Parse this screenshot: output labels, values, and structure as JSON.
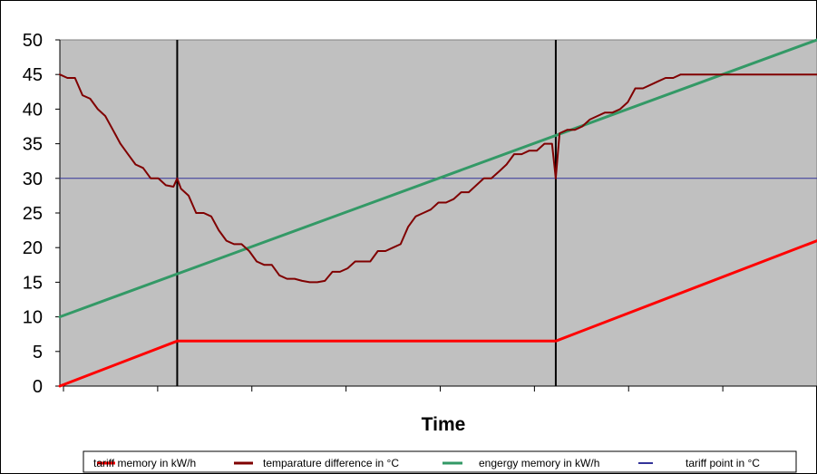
{
  "chart_data": {
    "type": "line",
    "title": "",
    "xlabel": "Time",
    "ylabel": "",
    "ylim": [
      0,
      50
    ],
    "yticks": [
      "0",
      "5",
      "10",
      "15",
      "20",
      "25",
      "30",
      "35",
      "40",
      "45",
      "50"
    ],
    "xlim": [
      0,
      100
    ],
    "grid": false,
    "legend_position": "bottom",
    "plot_background": "#c0c0c0",
    "vertical_markers": [
      15.5,
      65.5
    ],
    "series": [
      {
        "name": "tariff memory in kW/h",
        "color": "#ff0000",
        "x": [
          0,
          15.5,
          65.5,
          100
        ],
        "y": [
          0,
          6.5,
          6.5,
          21
        ]
      },
      {
        "name": "temparature difference in °C",
        "color": "#800000",
        "x": [
          0,
          1,
          2,
          3,
          4,
          5,
          6,
          7,
          8,
          9,
          10,
          11,
          12,
          13,
          14,
          15,
          15.5,
          16,
          17,
          18,
          19,
          20,
          21,
          22,
          23,
          24,
          25,
          26,
          27,
          28,
          29,
          30,
          31,
          32,
          33,
          34,
          35,
          36,
          37,
          38,
          39,
          40,
          41,
          42,
          43,
          44,
          45,
          46,
          47,
          48,
          49,
          50,
          51,
          52,
          53,
          54,
          55,
          56,
          57,
          58,
          59,
          60,
          61,
          62,
          63,
          64,
          65,
          65.5,
          66,
          67,
          68,
          69,
          70,
          71,
          72,
          73,
          74,
          75,
          76,
          77,
          78,
          79,
          80,
          81,
          82,
          83,
          84,
          85,
          86,
          87,
          88,
          89,
          90,
          91,
          92,
          93,
          94,
          95,
          96,
          97,
          98,
          99,
          100
        ],
        "y": [
          45,
          44.5,
          44.5,
          42,
          41.5,
          40,
          39,
          37,
          35,
          33.5,
          32,
          31.5,
          30,
          30,
          29,
          28.8,
          30,
          28.5,
          27.5,
          25,
          25,
          24.5,
          22.5,
          21,
          20.5,
          20.5,
          19.5,
          18,
          17.5,
          17.5,
          16,
          15.5,
          15.5,
          15.2,
          15,
          15,
          15.2,
          16.5,
          16.5,
          17,
          18,
          18,
          18,
          19.5,
          19.5,
          20,
          20.5,
          23,
          24.5,
          25,
          25.5,
          26.5,
          26.5,
          27,
          28,
          28,
          29,
          30,
          30,
          31,
          32,
          33.5,
          33.5,
          34,
          34,
          35,
          35,
          30,
          36.5,
          37,
          37,
          37.5,
          38.5,
          39,
          39.5,
          39.5,
          40,
          41,
          43,
          43,
          43.5,
          44,
          44.5,
          44.5,
          45,
          45,
          45,
          45,
          45,
          45,
          45,
          45,
          45,
          45,
          45,
          45,
          45,
          45,
          45,
          45,
          45,
          45,
          45
        ]
      },
      {
        "name": "engergy memory in kW/h",
        "color": "#339966",
        "x": [
          0,
          100
        ],
        "y": [
          10,
          50
        ]
      },
      {
        "name": "tariff point in °C",
        "color": "#333399",
        "x": [
          0,
          100
        ],
        "y": [
          30,
          30
        ]
      }
    ]
  }
}
